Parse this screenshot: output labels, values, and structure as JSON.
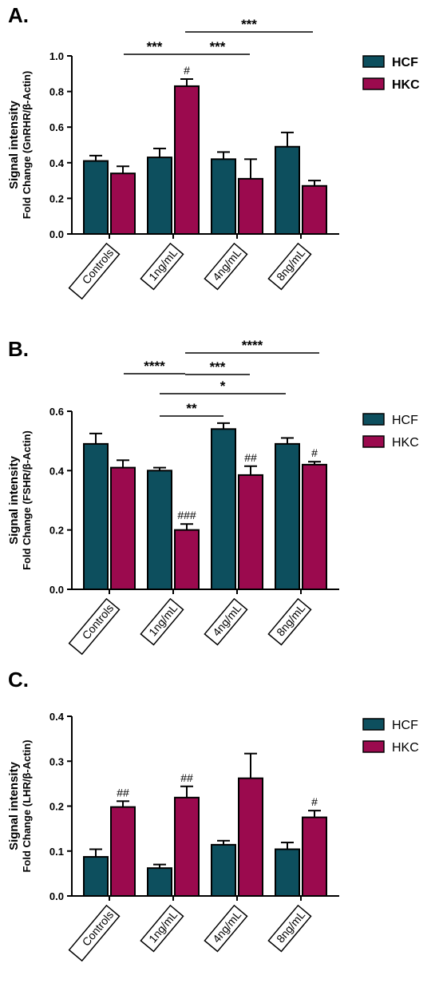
{
  "colors": {
    "HCF": "#0d4f5e",
    "HKC": "#9b0a4e"
  },
  "chart_data": [
    {
      "type": "bar",
      "panel": "A.",
      "ylabel": [
        "Signal intensity",
        "Fold Change (GnRHR/β-Actin)"
      ],
      "ylim": [
        0,
        1.0
      ],
      "yticks": [
        "0.0",
        "0.2",
        "0.4",
        "0.6",
        "0.8",
        "1.0"
      ],
      "categories": [
        "Controls",
        "1ng/mL",
        "4ng/mL",
        "8ng/mL"
      ],
      "legend_bold": true,
      "series": [
        {
          "name": "HCF",
          "values": [
            0.41,
            0.43,
            0.42,
            0.49
          ],
          "errors": [
            0.03,
            0.05,
            0.04,
            0.08
          ]
        },
        {
          "name": "HKC",
          "values": [
            0.34,
            0.83,
            0.31,
            0.27
          ],
          "errors": [
            0.04,
            0.04,
            0.11,
            0.03
          ]
        }
      ],
      "annotations": [
        {
          "series": 1,
          "index": 1,
          "text": "#"
        }
      ],
      "brackets": [
        {
          "from": 0,
          "to": 1,
          "text": "***"
        },
        {
          "from": 1,
          "to": 2,
          "text": "***"
        },
        {
          "from": 1,
          "to": 3,
          "text": "***"
        }
      ]
    },
    {
      "type": "bar",
      "panel": "B.",
      "ylabel": [
        "Signal intensity",
        "Fold Change (FSHR/β-Actin)"
      ],
      "ylim": [
        0,
        0.6
      ],
      "yticks": [
        "0.0",
        "0.2",
        "0.4",
        "0.6"
      ],
      "categories": [
        "Controls",
        "1ng/mL",
        "4ng/mL",
        "8ng/mL"
      ],
      "legend_bold": false,
      "series": [
        {
          "name": "HCF",
          "values": [
            0.49,
            0.4,
            0.54,
            0.49
          ],
          "errors": [
            0.035,
            0.01,
            0.02,
            0.02
          ]
        },
        {
          "name": "HKC",
          "values": [
            0.41,
            0.2,
            0.385,
            0.42
          ],
          "errors": [
            0.025,
            0.02,
            0.03,
            0.01
          ]
        }
      ],
      "annotations": [
        {
          "series": 1,
          "index": 1,
          "text": "###"
        },
        {
          "series": 1,
          "index": 2,
          "text": "##"
        },
        {
          "series": 1,
          "index": 3,
          "text": "#"
        }
      ],
      "brackets": [
        {
          "from": 0,
          "to": 1,
          "text": "****"
        },
        {
          "from": 1,
          "to": 2,
          "text": "***"
        },
        {
          "from": 1,
          "to": 3,
          "text": "****"
        },
        {
          "from": 1,
          "to": 3,
          "text": "*"
        },
        {
          "from": 1,
          "to": 2,
          "text": "**"
        }
      ]
    },
    {
      "type": "bar",
      "panel": "C.",
      "ylabel": [
        "Signal intensity",
        "Fold Change (LHR/β-Actin)"
      ],
      "ylim": [
        0,
        0.4
      ],
      "yticks": [
        "0.0",
        "0.1",
        "0.2",
        "0.3",
        "0.4"
      ],
      "categories": [
        "Controls",
        "1ng/mL",
        "4ng/mL",
        "8ng/mL"
      ],
      "legend_bold": false,
      "series": [
        {
          "name": "HCF",
          "values": [
            0.087,
            0.062,
            0.114,
            0.104
          ],
          "errors": [
            0.017,
            0.008,
            0.009,
            0.015
          ]
        },
        {
          "name": "HKC",
          "values": [
            0.198,
            0.219,
            0.262,
            0.175
          ],
          "errors": [
            0.013,
            0.025,
            0.055,
            0.015
          ]
        }
      ],
      "annotations": [
        {
          "series": 1,
          "index": 0,
          "text": "##"
        },
        {
          "series": 1,
          "index": 1,
          "text": "##"
        },
        {
          "series": 1,
          "index": 3,
          "text": "#"
        }
      ],
      "brackets": []
    }
  ]
}
